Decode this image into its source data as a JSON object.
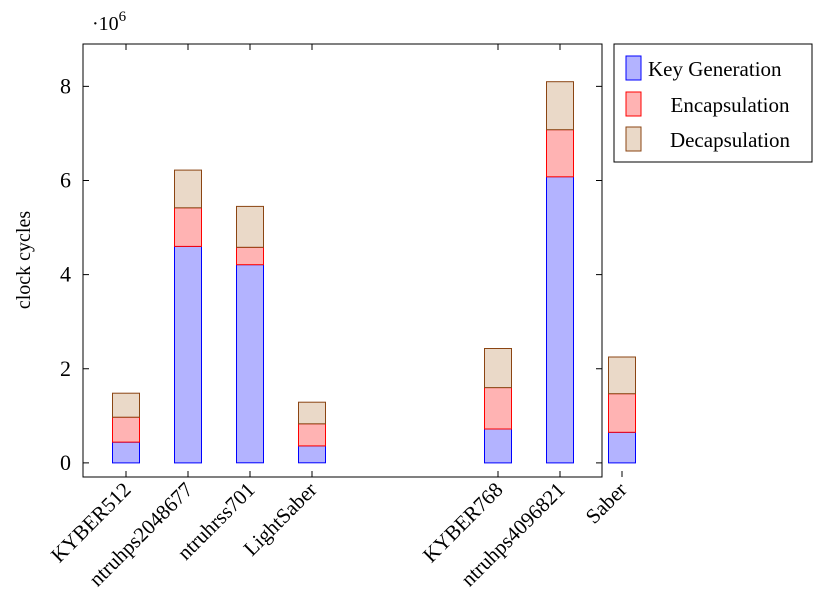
{
  "chart_data": {
    "type": "bar",
    "stacked": true,
    "categories": [
      "KYBER512",
      "ntruhps2048677",
      "ntruhrss701",
      "LightSaber",
      "KYBER768",
      "ntruhps4096821",
      "Saber"
    ],
    "category_gap_after_index": 3,
    "series": [
      {
        "name": "Key Generation",
        "values": [
          0.44,
          4.6,
          4.21,
          0.36,
          0.72,
          6.08,
          0.65
        ],
        "fill": "#b3b3ff",
        "stroke": "#0000ff"
      },
      {
        "name": "Encapsulation",
        "values": [
          0.53,
          0.82,
          0.37,
          0.47,
          0.88,
          1.0,
          0.82
        ],
        "fill": "#ffb3b3",
        "stroke": "#ff0000"
      },
      {
        "name": "Decapsulation",
        "values": [
          0.51,
          0.8,
          0.87,
          0.46,
          0.83,
          1.02,
          0.78
        ],
        "fill": "#ead9c8",
        "stroke": "#8b4513"
      }
    ],
    "title": "",
    "xlabel": "",
    "ylabel": "clock cycles",
    "y_scale_label": "·10^6",
    "ylim": [
      -0.3,
      8.9
    ],
    "yticks": [
      0,
      2,
      4,
      6,
      8
    ],
    "grid": false,
    "legend_position": "outside-top-right"
  }
}
